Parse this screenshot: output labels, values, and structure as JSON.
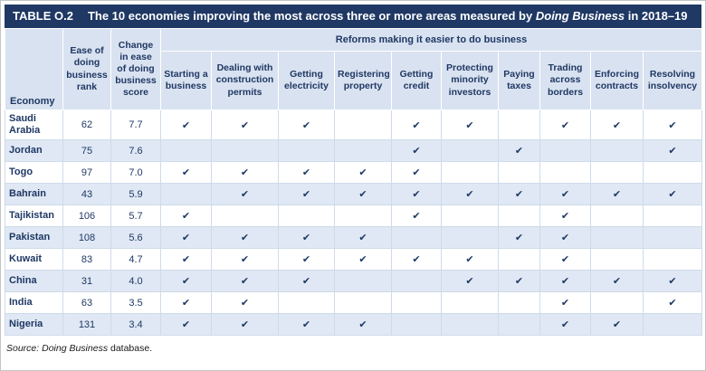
{
  "title": {
    "table_label": "TABLE O.2",
    "text": "The 10 economies improving the most across three or more areas measured by",
    "italic_term": "Doing Business",
    "text_end": "in 2018–19"
  },
  "table": {
    "columns": {
      "economy": "Economy",
      "rank": "Ease of doing business rank",
      "score_change": "Change in ease of doing business score",
      "reforms_group": "Reforms making it easier to do business",
      "reforms": [
        "Starting a business",
        "Dealing with construction permits",
        "Getting electricity",
        "Registering property",
        "Getting credit",
        "Protecting minority investors",
        "Paying taxes",
        "Trading across borders",
        "Enforcing contracts",
        "Resolving insolvency"
      ]
    },
    "check_glyph": "✔",
    "rows": [
      {
        "economy": "Saudi Arabia",
        "rank": "62",
        "score_change": "7.7",
        "reforms": [
          true,
          true,
          true,
          false,
          true,
          true,
          false,
          true,
          true,
          true
        ]
      },
      {
        "economy": "Jordan",
        "rank": "75",
        "score_change": "7.6",
        "reforms": [
          false,
          false,
          false,
          false,
          true,
          false,
          true,
          false,
          false,
          true
        ]
      },
      {
        "economy": "Togo",
        "rank": "97",
        "score_change": "7.0",
        "reforms": [
          true,
          true,
          true,
          true,
          true,
          false,
          false,
          false,
          false,
          false
        ]
      },
      {
        "economy": "Bahrain",
        "rank": "43",
        "score_change": "5.9",
        "reforms": [
          false,
          true,
          true,
          true,
          true,
          true,
          true,
          true,
          true,
          true
        ]
      },
      {
        "economy": "Tajikistan",
        "rank": "106",
        "score_change": "5.7",
        "reforms": [
          true,
          false,
          false,
          false,
          true,
          false,
          false,
          true,
          false,
          false
        ]
      },
      {
        "economy": "Pakistan",
        "rank": "108",
        "score_change": "5.6",
        "reforms": [
          true,
          true,
          true,
          true,
          false,
          false,
          true,
          true,
          false,
          false
        ]
      },
      {
        "economy": "Kuwait",
        "rank": "83",
        "score_change": "4.7",
        "reforms": [
          true,
          true,
          true,
          true,
          true,
          true,
          false,
          true,
          false,
          false
        ]
      },
      {
        "economy": "China",
        "rank": "31",
        "score_change": "4.0",
        "reforms": [
          true,
          true,
          true,
          false,
          false,
          true,
          true,
          true,
          true,
          true
        ]
      },
      {
        "economy": "India",
        "rank": "63",
        "score_change": "3.5",
        "reforms": [
          true,
          true,
          false,
          false,
          false,
          false,
          false,
          true,
          false,
          true
        ]
      },
      {
        "economy": "Nigeria",
        "rank": "131",
        "score_change": "3.4",
        "reforms": [
          true,
          true,
          true,
          true,
          false,
          false,
          false,
          true,
          true,
          false
        ]
      }
    ]
  },
  "footer": {
    "source_label": "Source:",
    "source_name": "Doing Business",
    "source_suffix": "database."
  },
  "colors": {
    "header_navy": "#1f3864",
    "panel_blue": "#d9e2f0",
    "stripe_blue": "#dfe8f4",
    "check_navy": "#1f3864"
  }
}
